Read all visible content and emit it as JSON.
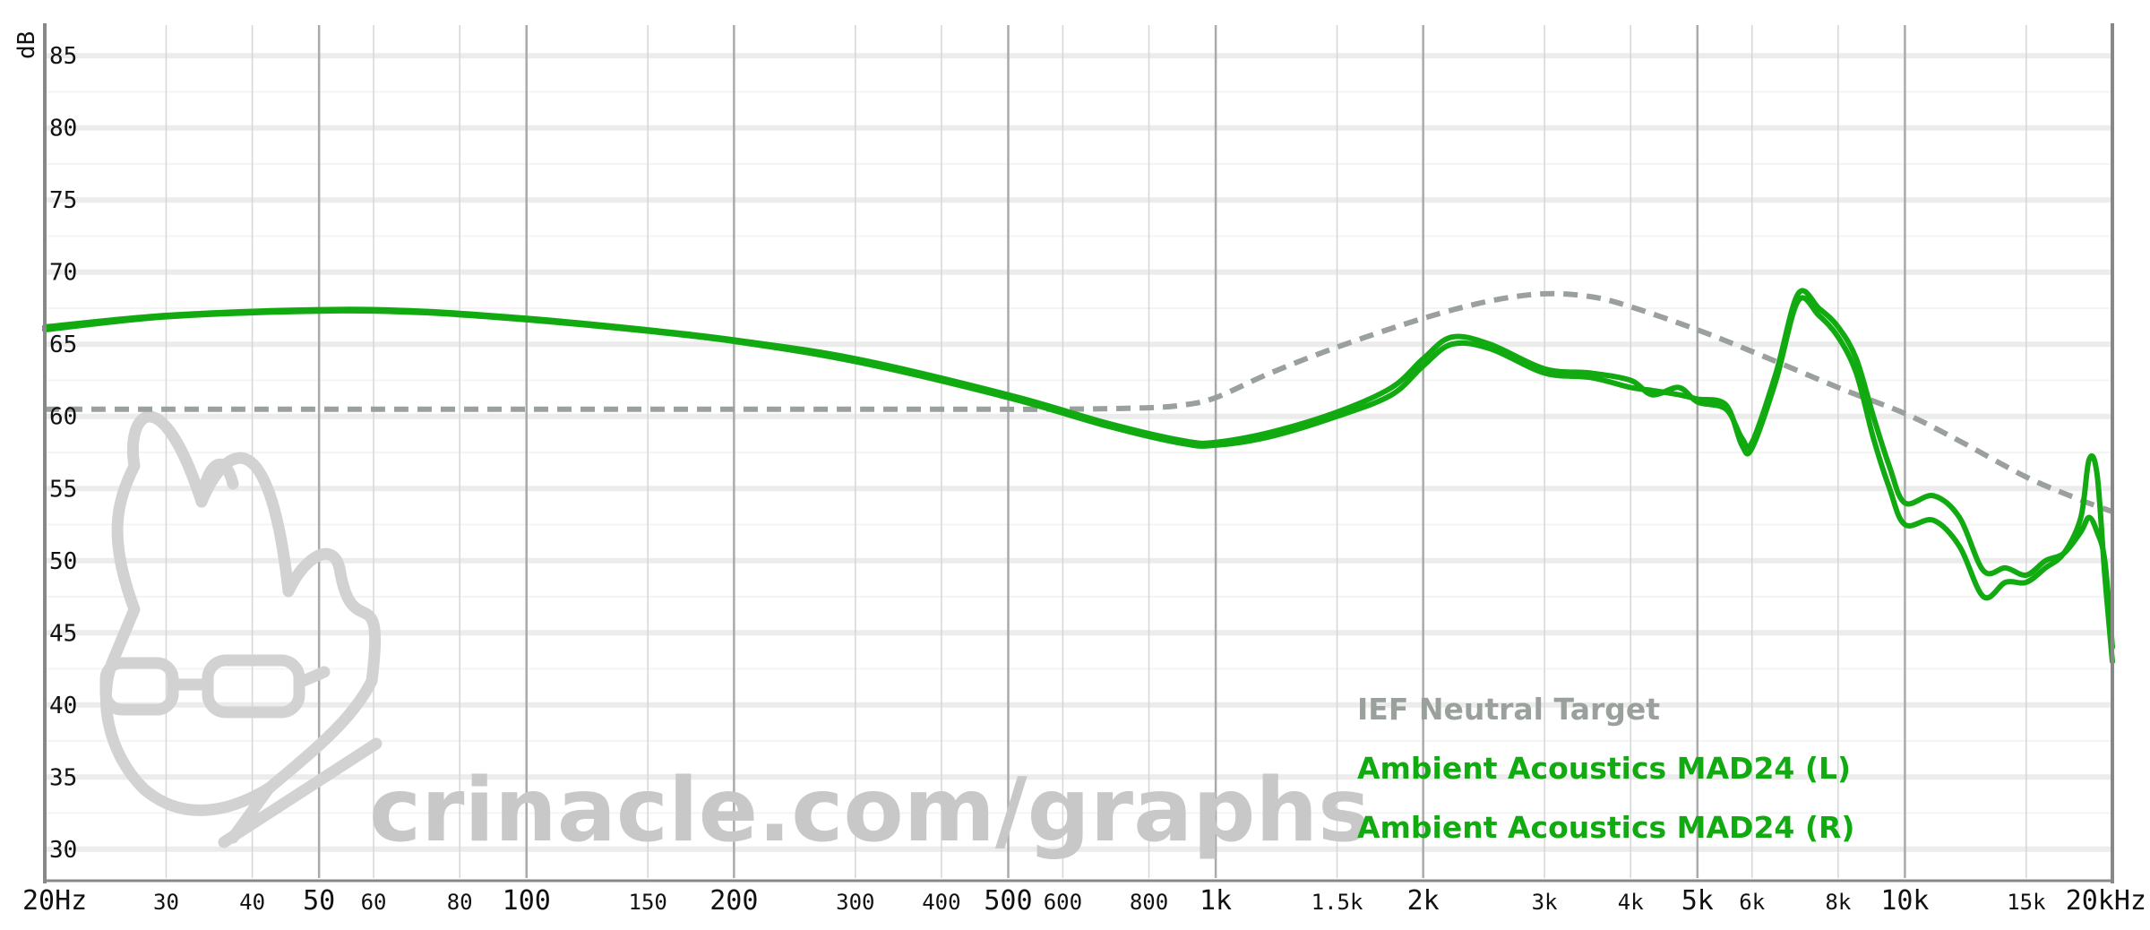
{
  "chart_data": {
    "type": "line",
    "ylabel": "dB",
    "ylim": [
      28,
      87
    ],
    "xlim": [
      20,
      20000
    ],
    "x_scale": "log",
    "grid": true,
    "y_ticks": [
      {
        "value": 30,
        "label": "30"
      },
      {
        "value": 35,
        "label": "35"
      },
      {
        "value": 40,
        "label": "40"
      },
      {
        "value": 45,
        "label": "45"
      },
      {
        "value": 50,
        "label": "50"
      },
      {
        "value": 55,
        "label": "55"
      },
      {
        "value": 60,
        "label": "60"
      },
      {
        "value": 65,
        "label": "65"
      },
      {
        "value": 70,
        "label": "70"
      },
      {
        "value": 75,
        "label": "75"
      },
      {
        "value": 80,
        "label": "80"
      },
      {
        "value": 85,
        "label": "85"
      }
    ],
    "x_ticks": [
      {
        "value": 20,
        "label": "20Hz",
        "major": true
      },
      {
        "value": 30,
        "label": "30",
        "major": false
      },
      {
        "value": 40,
        "label": "40",
        "major": false
      },
      {
        "value": 50,
        "label": "50",
        "major": true
      },
      {
        "value": 60,
        "label": "60",
        "major": false
      },
      {
        "value": 80,
        "label": "80",
        "major": false
      },
      {
        "value": 100,
        "label": "100",
        "major": true
      },
      {
        "value": 150,
        "label": "150",
        "major": false
      },
      {
        "value": 200,
        "label": "200",
        "major": true
      },
      {
        "value": 300,
        "label": "300",
        "major": false
      },
      {
        "value": 400,
        "label": "400",
        "major": false
      },
      {
        "value": 500,
        "label": "500",
        "major": true
      },
      {
        "value": 600,
        "label": "600",
        "major": false
      },
      {
        "value": 800,
        "label": "800",
        "major": false
      },
      {
        "value": 1000,
        "label": "1k",
        "major": true
      },
      {
        "value": 1500,
        "label": "1.5k",
        "major": false
      },
      {
        "value": 2000,
        "label": "2k",
        "major": true
      },
      {
        "value": 3000,
        "label": "3k",
        "major": false
      },
      {
        "value": 4000,
        "label": "4k",
        "major": false
      },
      {
        "value": 5000,
        "label": "5k",
        "major": true
      },
      {
        "value": 6000,
        "label": "6k",
        "major": false
      },
      {
        "value": 8000,
        "label": "8k",
        "major": false
      },
      {
        "value": 10000,
        "label": "10k",
        "major": true
      },
      {
        "value": 15000,
        "label": "15k",
        "major": false
      },
      {
        "value": 20000,
        "label": "20kHz",
        "major": true
      }
    ],
    "series": [
      {
        "name": "IEF Neutral Target",
        "color": "#9aa09c",
        "dashed": true,
        "x": [
          20,
          30,
          50,
          100,
          200,
          400,
          600,
          800,
          900,
          1000,
          1200,
          1500,
          2000,
          2500,
          3000,
          3500,
          4000,
          5000,
          6000,
          8000,
          10000,
          12000,
          15000,
          18000,
          20000
        ],
        "y": [
          60.5,
          60.5,
          60.5,
          60.5,
          60.5,
          60.5,
          60.5,
          60.6,
          60.8,
          61.3,
          63.0,
          64.8,
          66.8,
          68.0,
          68.5,
          68.3,
          67.6,
          66.0,
          64.5,
          62.0,
          60.2,
          58.3,
          55.8,
          54.2,
          53.4
        ]
      },
      {
        "name": "Ambient Acoustics MAD24 (L)",
        "color": "#11aa11",
        "dashed": false,
        "x": [
          20,
          30,
          50,
          70,
          100,
          150,
          200,
          300,
          500,
          700,
          900,
          1000,
          1200,
          1500,
          1800,
          2000,
          2200,
          2500,
          3000,
          3500,
          4000,
          4300,
          4700,
          5000,
          5500,
          5800,
          6000,
          6500,
          7000,
          7500,
          8000,
          8500,
          9000,
          9500,
          10000,
          11000,
          12000,
          13000,
          14000,
          15000,
          16000,
          17000,
          18000,
          18500,
          19000,
          19500,
          20000
        ],
        "y": [
          66.2,
          67.0,
          67.4,
          67.3,
          66.8,
          66.0,
          65.3,
          64.0,
          61.5,
          59.5,
          58.3,
          58.2,
          58.9,
          60.3,
          62.0,
          64.0,
          65.5,
          65.0,
          63.3,
          63.0,
          62.5,
          61.5,
          62.0,
          61.0,
          60.5,
          58.5,
          58.2,
          63.0,
          68.5,
          67.5,
          66.2,
          64.0,
          60.0,
          56.5,
          54.0,
          54.5,
          53.0,
          49.3,
          49.5,
          49.0,
          50.0,
          50.5,
          52.0,
          53.0,
          52.0,
          50.0,
          44.0
        ]
      },
      {
        "name": "Ambient Acoustics MAD24 (R)",
        "color": "#11aa11",
        "dashed": false,
        "x": [
          20,
          30,
          50,
          70,
          100,
          150,
          200,
          300,
          500,
          700,
          900,
          1000,
          1200,
          1500,
          1800,
          2000,
          2200,
          2500,
          3000,
          3500,
          4000,
          4300,
          4700,
          5000,
          5500,
          5800,
          6000,
          6500,
          7000,
          7500,
          8000,
          8500,
          9000,
          9500,
          10000,
          11000,
          12000,
          13000,
          14000,
          15000,
          16000,
          17000,
          18000,
          18500,
          19000,
          19500,
          20000
        ],
        "y": [
          66.0,
          66.9,
          67.3,
          67.2,
          66.7,
          65.9,
          65.2,
          63.8,
          61.3,
          59.3,
          58.1,
          58.0,
          58.6,
          60.0,
          61.5,
          63.5,
          65.0,
          64.7,
          63.0,
          62.7,
          62.0,
          61.8,
          61.5,
          61.2,
          60.8,
          58.0,
          57.8,
          62.5,
          68.0,
          67.0,
          65.5,
          63.0,
          58.5,
          55.0,
          52.5,
          52.8,
          51.0,
          47.5,
          48.5,
          48.5,
          49.5,
          50.5,
          53.0,
          57.0,
          56.0,
          49.0,
          43.0
        ]
      }
    ]
  },
  "legend": {
    "items": [
      {
        "label": "IEF Neutral Target",
        "color": "#9aa09c"
      },
      {
        "label": "Ambient Acoustics MAD24 (L)",
        "color": "#11aa11"
      },
      {
        "label": "Ambient Acoustics MAD24 (R)",
        "color": "#11aa11"
      }
    ]
  },
  "watermark": {
    "text": "crinacle.com/graphs",
    "logo_icon": "crinacle-mascot-icon"
  }
}
